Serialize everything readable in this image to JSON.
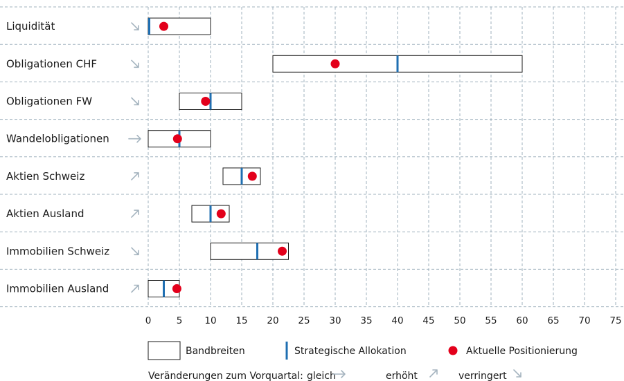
{
  "chart_data": {
    "type": "range-bar",
    "xlim": [
      0,
      75
    ],
    "x_ticks": [
      "0",
      "5",
      "10",
      "15",
      "20",
      "25",
      "30",
      "35",
      "40",
      "45",
      "50",
      "55",
      "60",
      "65",
      "70",
      "75"
    ],
    "grid": true,
    "categories": [
      "Liquidität",
      "Obligationen CHF",
      "Obligationen FW",
      "Wandelobligationen",
      "Aktien Schweiz",
      "Aktien Ausland",
      "Immobilien Schweiz",
      "Immobilien Ausland"
    ],
    "series": [
      {
        "name": "Bandbreiten",
        "values": [
          [
            0,
            10
          ],
          [
            20,
            60
          ],
          [
            5,
            15
          ],
          [
            0,
            10
          ],
          [
            12,
            18
          ],
          [
            7,
            13
          ],
          [
            10,
            22.5
          ],
          [
            0,
            5
          ]
        ]
      },
      {
        "name": "Strategische Allokation",
        "values": [
          0,
          40,
          10,
          5,
          15,
          10,
          17.5,
          2.5
        ]
      },
      {
        "name": "Aktuelle Positionierung",
        "values": [
          2.5,
          30,
          9.2,
          4.7,
          16.7,
          11.7,
          21.5,
          4.6
        ]
      }
    ],
    "changes": [
      "verringert",
      "verringert",
      "verringert",
      "gleich",
      "erhöht",
      "erhöht",
      "verringert",
      "erhöht"
    ],
    "legend": {
      "position": "bottom",
      "items": [
        "Bandbreiten",
        "Strategische Allokation",
        "Aktuelle Positionierung"
      ]
    },
    "footer": {
      "prefix": "Veränderungen zum Vorquartal:",
      "same": "gleich",
      "up": "erhöht",
      "down": "verringert"
    },
    "colors": {
      "band_fill": "#ffffff",
      "band_stroke": "#1a1a1a",
      "strategic": "#1f6fb2",
      "current": "#e3001b",
      "grid": "#9fb0bd",
      "arrow": "#a5b4bf"
    },
    "arrow_icons": {
      "gleich": "arrow-right-icon",
      "erhöht": "arrow-up-right-icon",
      "verringert": "arrow-down-right-icon"
    }
  }
}
